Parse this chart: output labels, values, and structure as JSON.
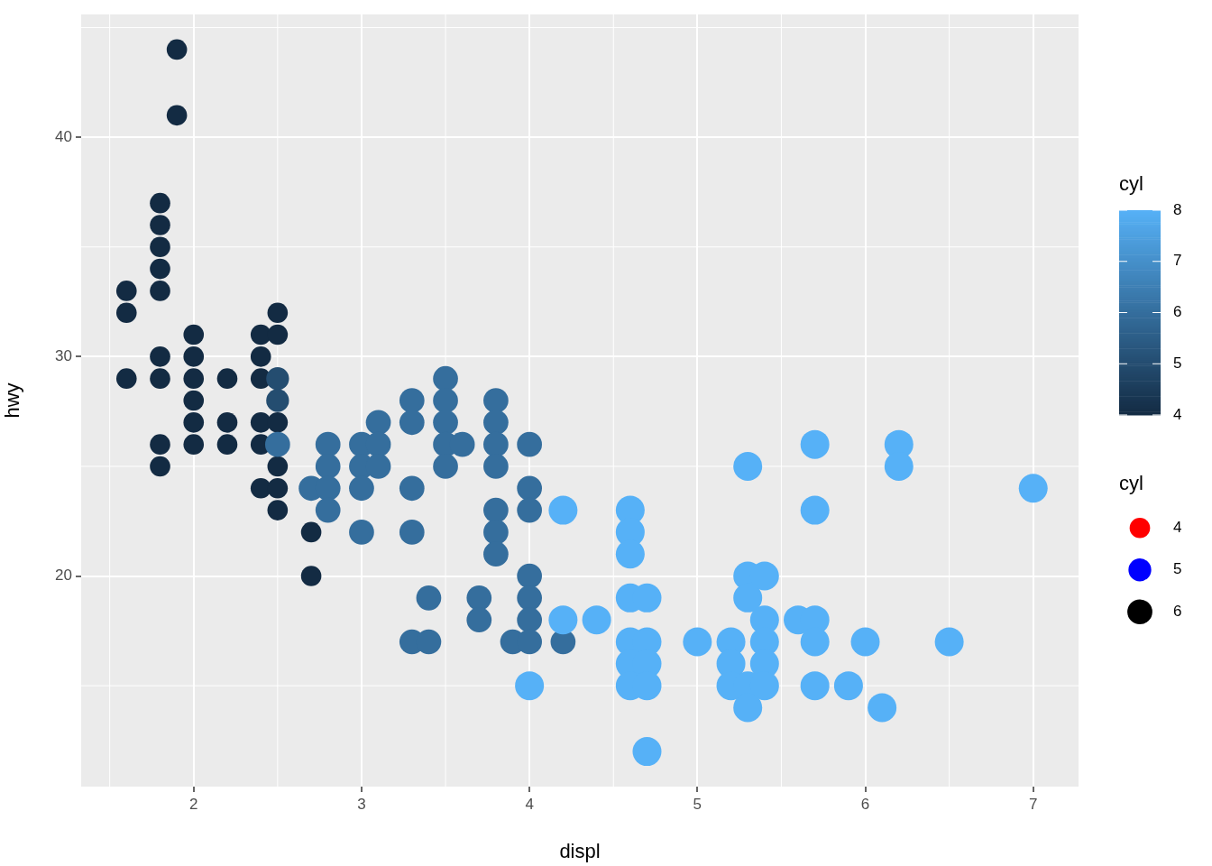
{
  "chart_data": {
    "type": "bubble",
    "xlabel": "displ",
    "ylabel": "hwy",
    "clabel": "cyl",
    "legend_title": "cyl",
    "x": [
      1.6,
      1.6,
      1.6,
      1.8,
      1.8,
      1.8,
      1.8,
      1.8,
      1.8,
      1.8,
      1.8,
      1.8,
      1.9,
      1.9,
      2.0,
      2.0,
      2.0,
      2.0,
      2.0,
      2.0,
      2.2,
      2.2,
      2.2,
      2.4,
      2.4,
      2.4,
      2.4,
      2.4,
      2.4,
      2.5,
      2.5,
      2.5,
      2.5,
      2.5,
      2.5,
      2.7,
      2.7,
      2.5,
      2.5,
      2.5,
      2.7,
      2.8,
      2.8,
      2.8,
      2.8,
      3.0,
      3.0,
      3.0,
      3.0,
      3.1,
      3.1,
      3.1,
      3.3,
      3.3,
      3.3,
      3.3,
      3.3,
      3.4,
      3.4,
      3.5,
      3.5,
      3.5,
      3.5,
      3.5,
      3.6,
      3.7,
      3.7,
      3.8,
      3.8,
      3.8,
      3.8,
      3.8,
      3.8,
      3.8,
      3.9,
      4.0,
      4.0,
      4.0,
      4.0,
      4.0,
      4.0,
      4.0,
      4.2,
      4.0,
      4.2,
      4.2,
      4.4,
      4.6,
      4.6,
      4.6,
      4.6,
      4.6,
      4.6,
      4.6,
      4.7,
      4.7,
      4.7,
      4.7,
      4.7,
      5.0,
      5.2,
      5.2,
      5.2,
      5.3,
      5.3,
      5.3,
      5.3,
      5.3,
      5.4,
      5.4,
      5.4,
      5.4,
      5.4,
      5.6,
      5.7,
      5.7,
      5.7,
      5.7,
      5.7,
      5.9,
      6.0,
      6.1,
      6.2,
      6.2,
      6.5,
      7.0
    ],
    "values": [
      33,
      32,
      29,
      37,
      36,
      35,
      34,
      33,
      30,
      29,
      26,
      25,
      44,
      41,
      31,
      30,
      29,
      28,
      27,
      26,
      29,
      27,
      26,
      31,
      30,
      29,
      27,
      26,
      24,
      32,
      31,
      27,
      25,
      24,
      23,
      22,
      20,
      29,
      28,
      26,
      24,
      26,
      25,
      24,
      23,
      26,
      25,
      24,
      22,
      27,
      26,
      25,
      28,
      27,
      24,
      22,
      17,
      19,
      17,
      29,
      28,
      27,
      26,
      25,
      26,
      19,
      18,
      28,
      27,
      26,
      25,
      23,
      22,
      21,
      17,
      26,
      24,
      23,
      20,
      19,
      18,
      17,
      17,
      15,
      23,
      18,
      18,
      23,
      22,
      21,
      19,
      17,
      16,
      15,
      19,
      17,
      16,
      15,
      12,
      17,
      17,
      16,
      15,
      25,
      20,
      19,
      15,
      14,
      20,
      18,
      17,
      16,
      15,
      18,
      26,
      23,
      18,
      17,
      15,
      15,
      17,
      14,
      26,
      25,
      17,
      24
    ],
    "cvalues": [
      4,
      4,
      4,
      4,
      4,
      4,
      4,
      4,
      4,
      4,
      4,
      4,
      4,
      4,
      4,
      4,
      4,
      4,
      4,
      4,
      4,
      4,
      4,
      4,
      4,
      4,
      4,
      4,
      4,
      4,
      4,
      4,
      4,
      4,
      4,
      4,
      4,
      5,
      5,
      6,
      6,
      6,
      6,
      6,
      6,
      6,
      6,
      6,
      6,
      6,
      6,
      6,
      6,
      6,
      6,
      6,
      6,
      6,
      6,
      6,
      6,
      6,
      6,
      6,
      6,
      6,
      6,
      6,
      6,
      6,
      6,
      6,
      6,
      6,
      6,
      6,
      6,
      6,
      6,
      6,
      6,
      6,
      6,
      8,
      8,
      8,
      8,
      8,
      8,
      8,
      8,
      8,
      8,
      8,
      8,
      8,
      8,
      8,
      8,
      8,
      8,
      8,
      8,
      8,
      8,
      8,
      8,
      8,
      8,
      8,
      8,
      8,
      8,
      8,
      8,
      8,
      8,
      8,
      8,
      8,
      8,
      8,
      8,
      8,
      8,
      8
    ],
    "sizes": [
      4,
      4,
      4,
      4,
      4,
      4,
      4,
      4,
      4,
      4,
      4,
      4,
      4,
      4,
      4,
      4,
      4,
      4,
      4,
      4,
      4,
      4,
      4,
      4,
      4,
      4,
      4,
      4,
      4,
      4,
      4,
      4,
      4,
      4,
      4,
      4,
      4,
      5,
      5,
      6,
      6,
      6,
      6,
      6,
      6,
      6,
      6,
      6,
      6,
      6,
      6,
      6,
      6,
      6,
      6,
      6,
      6,
      6,
      6,
      6,
      6,
      6,
      6,
      6,
      6,
      6,
      6,
      6,
      6,
      6,
      6,
      6,
      6,
      6,
      6,
      6,
      6,
      6,
      6,
      6,
      6,
      6,
      6,
      8,
      8,
      8,
      8,
      8,
      8,
      8,
      8,
      8,
      8,
      8,
      8,
      8,
      8,
      8,
      8,
      8,
      8,
      8,
      8,
      8,
      8,
      8,
      8,
      8,
      8,
      8,
      8,
      8,
      8,
      8,
      8,
      8,
      8,
      8,
      8,
      8,
      8,
      8,
      8,
      8,
      8,
      8
    ],
    "size_legend": [
      4,
      5,
      6
    ],
    "clim": [
      4,
      8
    ],
    "cticks": [
      4,
      5,
      6,
      7,
      8
    ],
    "xlim": [
      1.33,
      7.27
    ],
    "ylim": [
      10.4,
      45.6
    ],
    "xticks": [
      2,
      3,
      4,
      5,
      6,
      7
    ],
    "yticks": [
      20,
      30,
      40
    ],
    "grid": true,
    "marker": "circle"
  }
}
